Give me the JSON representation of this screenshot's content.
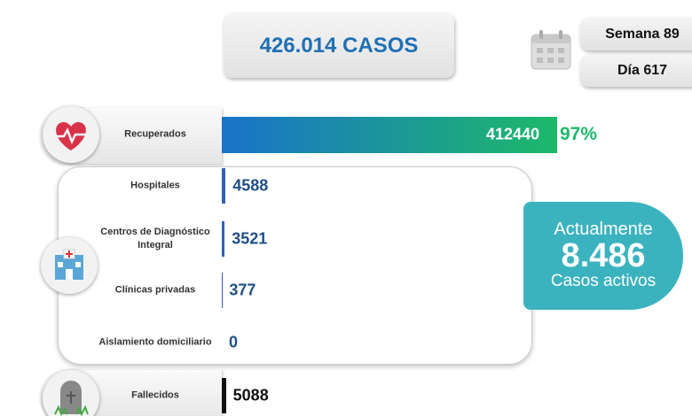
{
  "total": "426.014 CASOS",
  "week": "Semana 89",
  "day": "Día 617",
  "active": {
    "title": "Actualmente",
    "value": "8.486",
    "label": "Casos activos"
  },
  "chart_data": {
    "type": "hbar",
    "categories": [
      "Recuperados",
      "Hospitales",
      "Centros de Diagnóstico Integral",
      "Clínicas privadas",
      "Aislamiento domiciliario",
      "Fallecidos"
    ],
    "values": [
      412440,
      4588,
      3521,
      377,
      0,
      5088
    ],
    "colors": [
      "#1a73c9",
      "#2f62b5",
      "#2f62b5",
      "#2f62b5",
      "#2f62b5",
      "#111111"
    ],
    "annotation": "97%"
  }
}
